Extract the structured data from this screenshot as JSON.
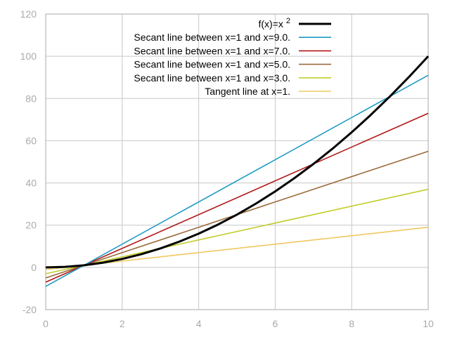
{
  "chart_data": {
    "type": "line",
    "title": "",
    "xlabel": "",
    "ylabel": "",
    "xlim": [
      0,
      10
    ],
    "ylim": [
      -20,
      120
    ],
    "xticks": [
      0,
      2,
      4,
      6,
      8,
      10
    ],
    "yticks": [
      -20,
      0,
      20,
      40,
      60,
      80,
      100,
      120
    ],
    "grid": true,
    "legend_position": "top-right",
    "series": [
      {
        "name_text": "f(x)=x",
        "name_superscript": "2",
        "kind": "curve",
        "x": [
          0,
          0.5,
          1,
          1.5,
          2,
          2.5,
          3,
          3.5,
          4,
          4.5,
          5,
          5.5,
          6,
          6.5,
          7,
          7.5,
          8,
          8.5,
          9,
          9.5,
          10
        ],
        "y": [
          0,
          0.25,
          1,
          2.25,
          4,
          6.25,
          9,
          12.25,
          16,
          20.25,
          25,
          30.25,
          36,
          42.25,
          49,
          56.25,
          64,
          72.25,
          81,
          90.25,
          100
        ],
        "color": "#000000",
        "width": "thick"
      },
      {
        "name": "Secant line between x=1 and x=9.0.",
        "kind": "line",
        "x": [
          0,
          10
        ],
        "y": [
          -9,
          91
        ],
        "color": "#1e9bc3"
      },
      {
        "name": "Secant line between x=1 and x=7.0.",
        "kind": "line",
        "x": [
          0,
          10
        ],
        "y": [
          -7,
          73
        ],
        "color": "#b01818"
      },
      {
        "name": "Secant line between x=1 and x=5.0.",
        "kind": "line",
        "x": [
          0,
          10
        ],
        "y": [
          -5,
          55
        ],
        "color": "#9a6a3a"
      },
      {
        "name": "Secant line between x=1 and x=3.0.",
        "kind": "line",
        "x": [
          0,
          10
        ],
        "y": [
          -3,
          37
        ],
        "color": "#c2cc2a"
      },
      {
        "name": "Tangent line at x=1.",
        "kind": "line",
        "x": [
          0,
          10
        ],
        "y": [
          -1,
          19
        ],
        "color": "#f0c860"
      }
    ],
    "colors": {
      "grid": "#c8c8c8",
      "axis_box": "#aaaaaa",
      "tick_text": "#aaaaaa"
    }
  }
}
